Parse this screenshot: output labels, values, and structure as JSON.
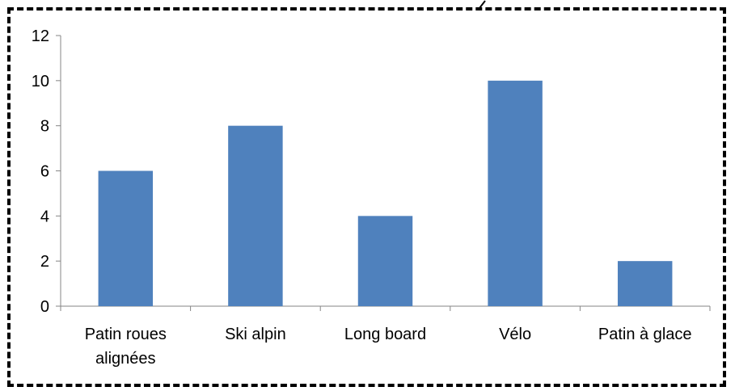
{
  "chart_data": {
    "type": "bar",
    "categories": [
      [
        "Patin roues",
        "alignées"
      ],
      [
        "Ski alpin"
      ],
      [
        "Long board"
      ],
      [
        "Vélo"
      ],
      [
        "Patin à glace"
      ]
    ],
    "values": [
      6,
      8,
      4,
      10,
      2
    ],
    "ylim": [
      0,
      12
    ],
    "yticks": [
      "0",
      "2",
      "4",
      "6",
      "8",
      "10",
      "12"
    ],
    "title": "",
    "xlabel": "",
    "ylabel": "",
    "grid": false,
    "legend": "none",
    "bar_color": "#4f81bd",
    "axis_color": "#868686"
  }
}
